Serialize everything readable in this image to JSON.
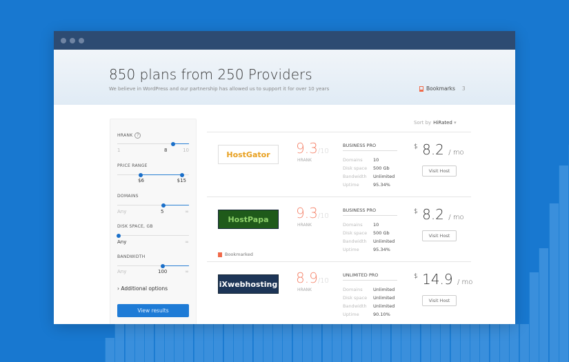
{
  "colors": {
    "background": "#1878d0",
    "accent": "#1e7bd6",
    "score": "#f4836a",
    "titlebar": "#2d4b72"
  },
  "header": {
    "title": "850 plans from 250 Providers",
    "subtitle": "We believe in WordPress and our partnership has allowed us to support it for over 10 years",
    "bookmarks_label": "Bookmarks",
    "bookmarks_count": "3"
  },
  "filters": {
    "hrank": {
      "label": "HRANK",
      "help": "?",
      "min": "1",
      "value": "8",
      "max": "10",
      "fraction": 0.78
    },
    "price": {
      "label": "PRICE RANGE",
      "low": "$6",
      "high": "$15",
      "low_fraction": 0.33,
      "high_fraction": 0.9
    },
    "domains": {
      "label": "DOMAINS",
      "min": "Any",
      "value": "5",
      "max": "∞",
      "fraction": 0.64
    },
    "disk": {
      "label": "DISK SPACE, GB",
      "value": "Any",
      "max": "∞",
      "fraction": 0.02
    },
    "bandwidth": {
      "label": "BANDWIDTH",
      "min": "Any",
      "value": "100",
      "max": "∞",
      "fraction": 0.63
    },
    "additional": "Additional options",
    "view_results": "View results"
  },
  "sort": {
    "label": "Sort by",
    "value": "HiRated"
  },
  "results": [
    {
      "logo": "HostGator",
      "score": "9.3",
      "out_of": "/10",
      "hrank": "HRANK",
      "plan": "BUSINESS PRO",
      "specs": [
        [
          "Domains",
          "10"
        ],
        [
          "Disk space",
          "500 Gb"
        ],
        [
          "Bandwidth",
          "Unlimited"
        ],
        [
          "Uptime",
          "95.34%"
        ]
      ],
      "currency": "$",
      "price": "8.2",
      "per": "/ mo",
      "visit": "Visit Host"
    },
    {
      "logo": "HostPapa",
      "score": "9.3",
      "out_of": "/10",
      "hrank": "HRANK",
      "plan": "BUSINESS PRO",
      "specs": [
        [
          "Domains",
          "10"
        ],
        [
          "Disk space",
          "500 Gb"
        ],
        [
          "Bandwidth",
          "Unlimited"
        ],
        [
          "Uptime",
          "95.34%"
        ]
      ],
      "currency": "$",
      "price": "8.2",
      "per": "/ mo",
      "visit": "Visit Host",
      "bookmarked": "Bookmarked"
    },
    {
      "logo": "iXwebhosting",
      "score": "8.9",
      "out_of": "/10",
      "hrank": "HRANK",
      "plan": "UNLIMITED PRO",
      "specs": [
        [
          "Domains",
          "Unlimited"
        ],
        [
          "Disk space",
          "Unlimited"
        ],
        [
          "Bandwidth",
          "Unlimited"
        ],
        [
          "Uptime",
          "90.10%"
        ]
      ],
      "currency": "$",
      "price": "14.9",
      "per": "/ mo",
      "visit": "Visit Host"
    }
  ]
}
